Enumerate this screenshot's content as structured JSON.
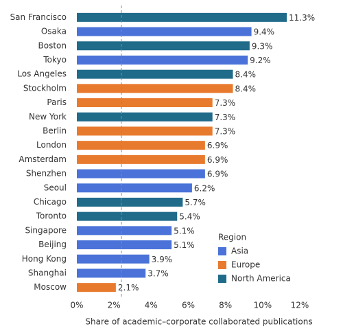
{
  "chart_data": {
    "type": "barh",
    "x_label": "Share of academic–corporate collaborated publications",
    "categories": [
      "San Francisco",
      "Osaka",
      "Boston",
      "Tokyo",
      "Los Angeles",
      "Stockholm",
      "Paris",
      "New York",
      "Berlin",
      "London",
      "Amsterdam",
      "Shenzhen",
      "Seoul",
      "Chicago",
      "Toronto",
      "Singapore",
      "Beijing",
      "Hong Kong",
      "Shanghai",
      "Moscow"
    ],
    "legend_title": "Region",
    "series": [
      {
        "name": "Asia",
        "color": "#4a72d8",
        "values": [
          null,
          9.4,
          null,
          9.2,
          null,
          null,
          null,
          null,
          null,
          null,
          null,
          6.9,
          6.2,
          null,
          null,
          5.1,
          5.1,
          3.9,
          3.7,
          null
        ],
        "value_labels": [
          null,
          "9.4%",
          null,
          "9.2%",
          null,
          null,
          null,
          null,
          null,
          null,
          null,
          "6.9%",
          "6.2%",
          null,
          null,
          "5.1%",
          "5.1%",
          "3.9%",
          "3.7%",
          null
        ]
      },
      {
        "name": "Europe",
        "color": "#e87a2e",
        "values": [
          null,
          null,
          null,
          null,
          null,
          8.4,
          7.3,
          null,
          7.3,
          6.9,
          6.9,
          null,
          null,
          null,
          null,
          null,
          null,
          null,
          null,
          2.1
        ],
        "value_labels": [
          null,
          null,
          null,
          null,
          null,
          "8.4%",
          "7.3%",
          null,
          "7.3%",
          "6.9%",
          "6.9%",
          null,
          null,
          null,
          null,
          null,
          null,
          null,
          null,
          "2.1%"
        ]
      },
      {
        "name": "North America",
        "color": "#206b8a",
        "values": [
          11.3,
          null,
          9.3,
          null,
          8.4,
          null,
          null,
          7.3,
          null,
          null,
          null,
          null,
          null,
          5.7,
          5.4,
          null,
          null,
          null,
          null,
          null
        ],
        "value_labels": [
          "11.3%",
          null,
          "9.3%",
          null,
          "8.4%",
          null,
          null,
          "7.3%",
          null,
          null,
          null,
          null,
          null,
          "5.7%",
          "5.4%",
          null,
          null,
          null,
          null,
          null
        ]
      }
    ],
    "xlim": [
      0,
      12
    ],
    "xticks": [
      {
        "value": 0,
        "label": "0%"
      },
      {
        "value": 2,
        "label": "2%"
      },
      {
        "value": 4,
        "label": "4%"
      },
      {
        "value": 6,
        "label": "6%"
      },
      {
        "value": 8,
        "label": "8%"
      },
      {
        "value": 10,
        "label": "10%"
      },
      {
        "value": 12,
        "label": "12%"
      }
    ],
    "reference_line": 2.4
  }
}
